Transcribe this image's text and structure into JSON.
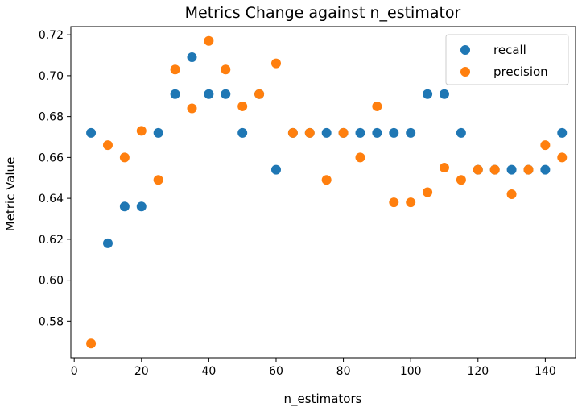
{
  "chart_data": {
    "type": "scatter",
    "title": "Metrics Change against n_estimator",
    "xlabel": "n_estimators",
    "ylabel": "Metric Value",
    "xlim": [
      -1,
      149
    ],
    "ylim": [
      0.562,
      0.724
    ],
    "xticks": [
      0,
      20,
      40,
      60,
      80,
      100,
      120,
      140
    ],
    "yticks": [
      0.58,
      0.6,
      0.62,
      0.64,
      0.66,
      0.68,
      0.7,
      0.72
    ],
    "grid": false,
    "legend_position": "top-right",
    "x": [
      5,
      10,
      15,
      20,
      25,
      30,
      35,
      40,
      45,
      50,
      55,
      60,
      65,
      70,
      75,
      80,
      85,
      90,
      95,
      100,
      105,
      110,
      115,
      120,
      125,
      130,
      135,
      140,
      145
    ],
    "series": [
      {
        "name": "recall",
        "color": "#1f77b4",
        "values": [
          0.672,
          0.618,
          0.636,
          0.636,
          0.672,
          0.691,
          0.709,
          0.691,
          0.691,
          0.672,
          0.691,
          0.654,
          0.672,
          0.672,
          0.672,
          0.672,
          0.672,
          0.672,
          0.672,
          0.672,
          0.691,
          0.691,
          0.672,
          0.654,
          0.654,
          0.654,
          0.654,
          0.654,
          0.672
        ]
      },
      {
        "name": "precision",
        "color": "#ff7f0e",
        "values": [
          0.569,
          0.666,
          0.66,
          0.673,
          0.649,
          0.703,
          0.684,
          0.717,
          0.703,
          0.685,
          0.691,
          0.706,
          0.672,
          0.672,
          0.649,
          0.672,
          0.66,
          0.685,
          0.638,
          0.638,
          0.643,
          0.655,
          0.649,
          0.654,
          0.654,
          0.642,
          0.654,
          0.666,
          0.66
        ]
      }
    ]
  }
}
